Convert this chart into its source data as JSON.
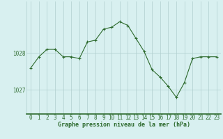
{
  "hours": [
    0,
    1,
    2,
    3,
    4,
    5,
    6,
    7,
    8,
    9,
    10,
    11,
    12,
    13,
    14,
    15,
    16,
    17,
    18,
    19,
    20,
    21,
    22,
    23
  ],
  "pressure": [
    1027.6,
    1027.9,
    1028.1,
    1028.1,
    1027.9,
    1027.9,
    1027.85,
    1028.3,
    1028.35,
    1028.65,
    1028.7,
    1028.85,
    1028.75,
    1028.4,
    1028.05,
    1027.55,
    1027.35,
    1027.1,
    1026.8,
    1027.2,
    1027.85,
    1027.9,
    1027.9,
    1027.9
  ],
  "line_color": "#2d6a2d",
  "marker": "+",
  "marker_color": "#2d6a2d",
  "bg_color": "#d8f0f0",
  "grid_color": "#b0cece",
  "xlabel": "Graphe pression niveau de la mer (hPa)",
  "xlabel_color": "#2d6a2d",
  "tick_color": "#2d6a2d",
  "ytick_labels": [
    1027,
    1028
  ],
  "ylim": [
    1026.35,
    1029.4
  ],
  "xlim": [
    -0.5,
    23.5
  ],
  "bottom_bar_color": "#2d6a2d",
  "label_fontsize": 6.0,
  "tick_fontsize": 5.5
}
